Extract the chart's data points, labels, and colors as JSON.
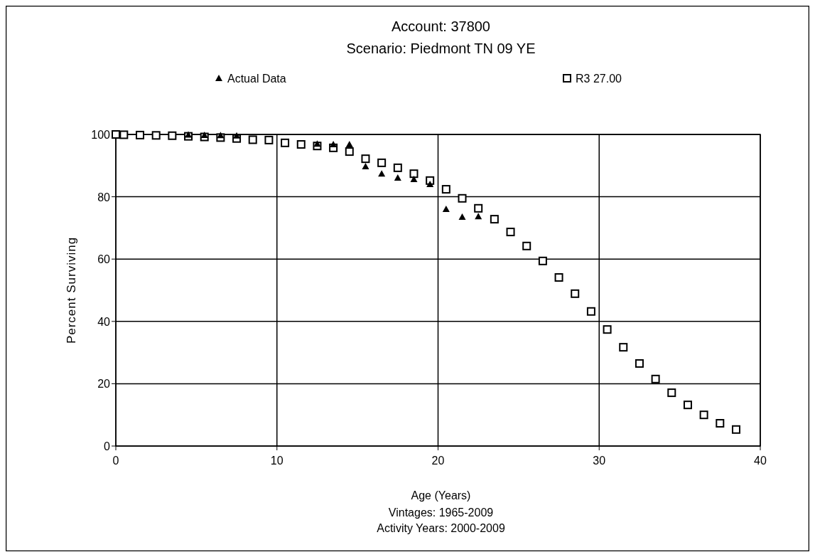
{
  "chart_data": {
    "type": "scatter",
    "title": "Account: 37800",
    "subtitle": "Scenario: Piedmont TN 09 YE",
    "xlabel": "Age (Years)",
    "ylabel": "Percent Surviving",
    "annotations": [
      "Vintages: 1965-2009",
      "Activity Years: 2000-2009"
    ],
    "xlim": [
      0,
      40
    ],
    "xticks": [
      0,
      10,
      20,
      30,
      40
    ],
    "ylim": [
      0,
      100
    ],
    "yticks": [
      0,
      20,
      40,
      60,
      80,
      100
    ],
    "grid": true,
    "legend": "top",
    "series": [
      {
        "name": "Actual Data",
        "color": "#000000",
        "marker": "triangle",
        "x": [
          4.5,
          5.5,
          6.5,
          7.5,
          12.5,
          13.5,
          14.5,
          15.5,
          16.5,
          17.5,
          18.5,
          19.5,
          20.5,
          21.5,
          22.5
        ],
        "values": [
          99.9,
          99.8,
          99.7,
          99.6,
          97.0,
          96.8,
          96.8,
          89.7,
          87.4,
          86.1,
          85.6,
          84.0,
          76.0,
          73.5,
          73.7
        ]
      },
      {
        "name": "R3 27.00",
        "color": "#000000",
        "marker": "square",
        "x": [
          0,
          0.5,
          1.5,
          2.5,
          3.5,
          4.5,
          5.5,
          6.5,
          7.5,
          8.5,
          9.5,
          10.5,
          11.5,
          12.5,
          13.5,
          14.5,
          15.5,
          16.5,
          17.5,
          18.5,
          19.5,
          20.5,
          21.5,
          22.5,
          23.5,
          24.5,
          25.5,
          26.5,
          27.5,
          28.5,
          29.5,
          30.5,
          31.5,
          32.5,
          33.5,
          34.5,
          35.5,
          36.5,
          37.5,
          38.5
        ],
        "values": [
          100,
          99.9,
          99.8,
          99.7,
          99.6,
          99.4,
          99.2,
          99.0,
          98.7,
          98.3,
          98.2,
          97.3,
          96.8,
          96.3,
          95.7,
          94.5,
          92.2,
          90.9,
          89.3,
          87.4,
          85.2,
          82.4,
          79.5,
          76.3,
          72.8,
          68.7,
          64.2,
          59.4,
          54.1,
          48.9,
          43.2,
          37.4,
          31.7,
          26.5,
          21.5,
          17.1,
          13.2,
          10.0,
          7.3,
          5.3
        ]
      }
    ]
  }
}
